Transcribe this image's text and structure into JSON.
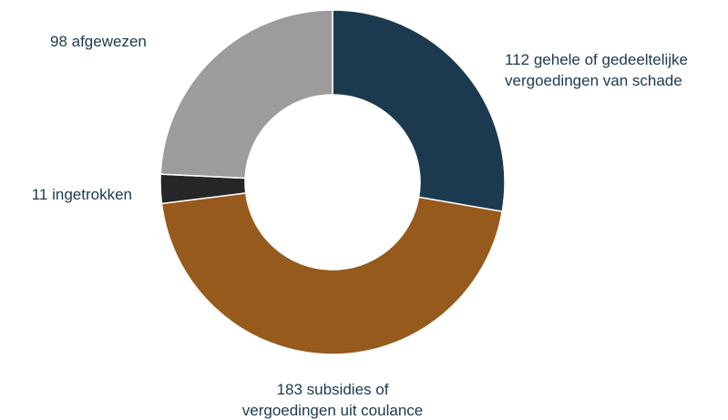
{
  "chart_data": {
    "type": "pie",
    "variant": "donut",
    "slices": [
      {
        "value": 112,
        "label_lines": [
          "112 gehele of gedeeltelijke",
          "vergoedingen van schade"
        ],
        "color": "#1b3a4f"
      },
      {
        "value": 183,
        "label_lines": [
          "183 subsidies of",
          "vergoedingen uit coulance"
        ],
        "color": "#955a1c"
      },
      {
        "value": 11,
        "label_lines": [
          "11 ingetrokken"
        ],
        "color": "#262626"
      },
      {
        "value": 98,
        "label_lines": [
          "98 afgewezen"
        ],
        "color": "#9c9c9c"
      }
    ],
    "label_color": "#1a3a4f",
    "legend": "none"
  }
}
